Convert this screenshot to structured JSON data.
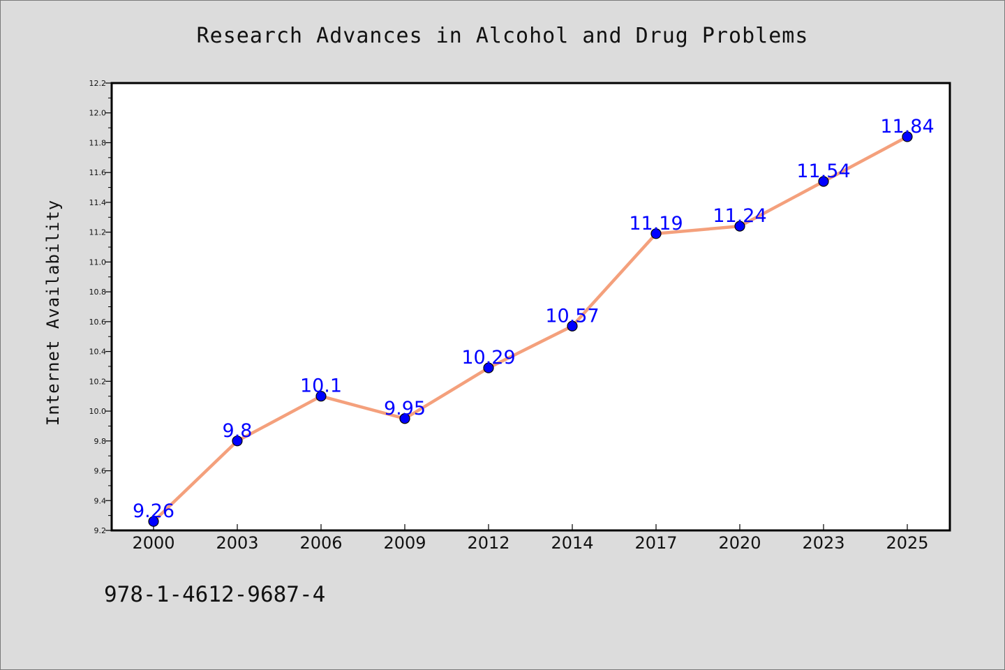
{
  "title": "Research Advances in Alcohol and Drug Problems",
  "footer_text": "978-1-4612-9687-4",
  "chart_data": {
    "type": "line",
    "title": "Research Advances in Alcohol and Drug Problems",
    "xlabel": "",
    "ylabel": "Internet Availability",
    "categories": [
      "2000",
      "2003",
      "2006",
      "2009",
      "2012",
      "2014",
      "2017",
      "2020",
      "2023",
      "2025"
    ],
    "series": [
      {
        "values": [
          9.26,
          9.8,
          10.1,
          9.95,
          10.29,
          10.57,
          11.19,
          11.24,
          11.54,
          11.84
        ],
        "labels": [
          "9.26",
          "9.8",
          "10.1",
          "9.95",
          "10.29",
          "10.57",
          "11.19",
          "11.24",
          "11.54",
          "11.84"
        ],
        "line_color": "#f4a07c",
        "marker_color": "#0000ff",
        "label_color": "#0000ff"
      }
    ],
    "ylim": [
      9.2,
      12.2
    ],
    "yticks": [
      "9.2",
      "9.4",
      "9.6",
      "9.8",
      "10.0",
      "10.2",
      "10.4",
      "10.6",
      "10.8",
      "11.0",
      "11.2",
      "11.4",
      "11.6",
      "11.8",
      "12.0",
      "12.2"
    ],
    "grid": false,
    "legend": "none"
  }
}
